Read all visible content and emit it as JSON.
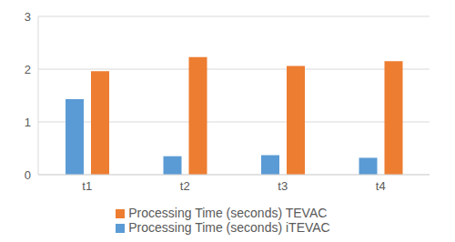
{
  "chart_data": {
    "type": "bar",
    "categories": [
      "t1",
      "t2",
      "t3",
      "t4"
    ],
    "series": [
      {
        "name": "Processing Time (seconds) iTEVAC",
        "color": "#5b9bd5",
        "values": [
          1.43,
          0.35,
          0.37,
          0.32
        ]
      },
      {
        "name": "Processing Time (seconds) TEVAC",
        "color": "#ed7d31",
        "values": [
          1.96,
          2.23,
          2.06,
          2.15
        ]
      }
    ],
    "ylim": [
      0,
      3
    ],
    "yticks": [
      0,
      1,
      2,
      3
    ],
    "grid": true,
    "legend": "bottom"
  }
}
